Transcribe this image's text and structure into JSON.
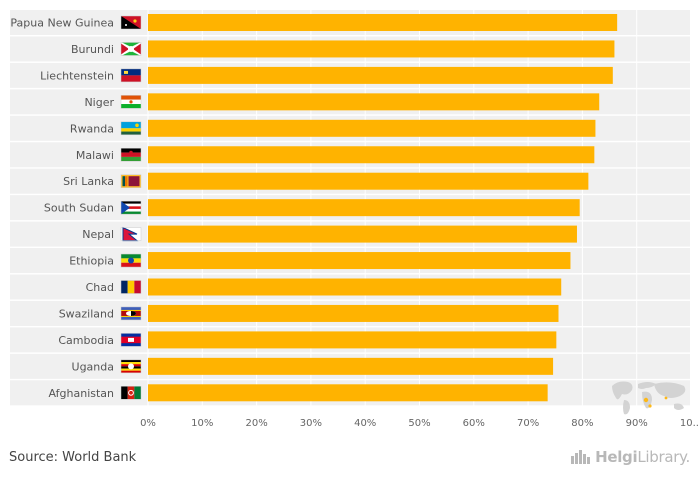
{
  "chart_data": {
    "type": "bar",
    "orientation": "horizontal",
    "categories": [
      "Papua New Guinea",
      "Burundi",
      "Liechtenstein",
      "Niger",
      "Rwanda",
      "Malawi",
      "Sri Lanka",
      "South Sudan",
      "Nepal",
      "Ethiopia",
      "Chad",
      "Swaziland",
      "Cambodia",
      "Uganda",
      "Afghanistan"
    ],
    "values": [
      86.4,
      85.9,
      85.6,
      83.1,
      82.4,
      82.2,
      81.1,
      79.5,
      79.0,
      77.8,
      76.1,
      75.6,
      75.2,
      74.6,
      73.6
    ],
    "xlim": [
      0,
      100
    ],
    "x_ticks": [
      "0%",
      "10%",
      "20%",
      "30%",
      "40%",
      "50%",
      "60%",
      "70%",
      "80%",
      "90%",
      "10..."
    ],
    "bar_color": "#FFB300",
    "row_band_color": "#f0f0f0",
    "grid": true,
    "flags": [
      "papua-new-guinea-flag-icon",
      "burundi-flag-icon",
      "liechtenstein-flag-icon",
      "niger-flag-icon",
      "rwanda-flag-icon",
      "malawi-flag-icon",
      "sri-lanka-flag-icon",
      "south-sudan-flag-icon",
      "nepal-flag-icon",
      "ethiopia-flag-icon",
      "chad-flag-icon",
      "swaziland-flag-icon",
      "cambodia-flag-icon",
      "uganda-flag-icon",
      "afghanistan-flag-icon"
    ]
  },
  "footer": {
    "source": "Source: World Bank",
    "brand_main": "Helgi",
    "brand_sub": "Library."
  }
}
